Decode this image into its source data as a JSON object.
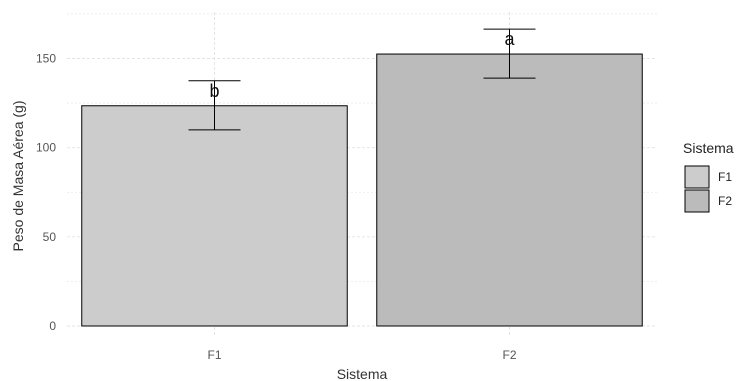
{
  "chart_data": {
    "type": "bar",
    "categories": [
      "F1",
      "F2"
    ],
    "values": [
      123.5,
      152.5
    ],
    "error": [
      {
        "low": 110,
        "high": 137.5
      },
      {
        "low": 139,
        "high": 166.5
      }
    ],
    "significance_labels": [
      "b",
      "a"
    ],
    "xlabel": "Sistema",
    "ylabel": "Peso de Masa Aérea (g)",
    "ylim": [
      0,
      177
    ],
    "y_ticks": [
      0,
      50,
      100,
      150
    ],
    "y_tick_labels": [
      "0",
      "50",
      "100",
      "150"
    ],
    "grid": true,
    "legend": {
      "title": "Sistema",
      "position": "right",
      "entries": [
        "F1",
        "F2"
      ]
    },
    "colors": {
      "bars": [
        "#cccccc",
        "#bbbbbb"
      ],
      "outline": "#000000",
      "grid": "#e3e3e3"
    }
  }
}
